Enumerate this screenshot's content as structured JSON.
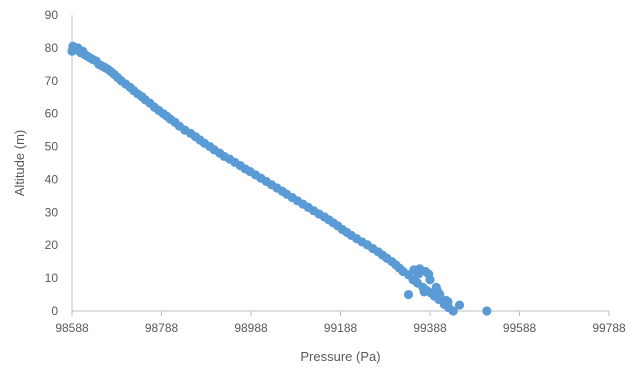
{
  "chart_data": {
    "type": "scatter",
    "title": "",
    "xlabel": "Pressure (Pa)",
    "ylabel": "Altitude (m)",
    "xlim": [
      98588,
      99788
    ],
    "ylim": [
      0,
      90
    ],
    "x_ticks": [
      "98588",
      "98788",
      "98988",
      "99188",
      "99388",
      "99588",
      "99788"
    ],
    "y_ticks": [
      "0",
      "10",
      "20",
      "30",
      "40",
      "50",
      "60",
      "70",
      "80",
      "90"
    ],
    "grid": false,
    "legend": "none",
    "marker_color": "#5b9bd5",
    "series": [
      {
        "points": [
          [
            98588,
            79
          ],
          [
            98590,
            80.5
          ],
          [
            98593,
            80
          ],
          [
            98597,
            79.5
          ],
          [
            98601,
            80
          ],
          [
            98604,
            79
          ],
          [
            98608,
            78.5
          ],
          [
            98612,
            79
          ],
          [
            98616,
            78
          ],
          [
            98622,
            77.5
          ],
          [
            98628,
            77
          ],
          [
            98634,
            76.5
          ],
          [
            98642,
            76
          ],
          [
            98648,
            75
          ],
          [
            98655,
            74.5
          ],
          [
            98662,
            74
          ],
          [
            98668,
            73.5
          ],
          [
            98675,
            72.8
          ],
          [
            98682,
            72
          ],
          [
            98690,
            71
          ],
          [
            98698,
            70
          ],
          [
            98708,
            69
          ],
          [
            98718,
            68
          ],
          [
            98726,
            67
          ],
          [
            98735,
            66
          ],
          [
            98744,
            65.2
          ],
          [
            98752,
            64.2
          ],
          [
            98762,
            63.2
          ],
          [
            98772,
            62
          ],
          [
            98782,
            61
          ],
          [
            98792,
            60
          ],
          [
            98800,
            59.2
          ],
          [
            98808,
            58.3
          ],
          [
            98818,
            57.4
          ],
          [
            98828,
            56.2
          ],
          [
            98840,
            55
          ],
          [
            98853,
            54
          ],
          [
            98864,
            53
          ],
          [
            98874,
            52
          ],
          [
            98884,
            51
          ],
          [
            98896,
            50
          ],
          [
            98906,
            49
          ],
          [
            98918,
            48
          ],
          [
            98928,
            47
          ],
          [
            98940,
            46.2
          ],
          [
            98952,
            45.2
          ],
          [
            98964,
            44.2
          ],
          [
            98975,
            43.2
          ],
          [
            98986,
            42.4
          ],
          [
            98998,
            41.4
          ],
          [
            99010,
            40.4
          ],
          [
            99022,
            39.4
          ],
          [
            99034,
            38.4
          ],
          [
            99046,
            37.4
          ],
          [
            99058,
            36.4
          ],
          [
            99068,
            35.5
          ],
          [
            99080,
            34.5
          ],
          [
            99092,
            33.5
          ],
          [
            99104,
            32.5
          ],
          [
            99116,
            31.5
          ],
          [
            99128,
            30.5
          ],
          [
            99140,
            29.5
          ],
          [
            99152,
            28.6
          ],
          [
            99162,
            27.7
          ],
          [
            99172,
            26.8
          ],
          [
            99182,
            25.9
          ],
          [
            99192,
            24.8
          ],
          [
            99202,
            23.9
          ],
          [
            99212,
            23
          ],
          [
            99224,
            22
          ],
          [
            99236,
            21
          ],
          [
            99248,
            20.1
          ],
          [
            99260,
            19
          ],
          [
            99272,
            18
          ],
          [
            99282,
            17
          ],
          [
            99292,
            16
          ],
          [
            99303,
            15
          ],
          [
            99312,
            14
          ],
          [
            99320,
            13
          ],
          [
            99328,
            12
          ],
          [
            99340,
            11
          ],
          [
            99350,
            9.5
          ],
          [
            99360,
            8.5
          ],
          [
            99372,
            7.2
          ],
          [
            99380,
            6.3
          ],
          [
            99390,
            5.5
          ],
          [
            99398,
            4.5
          ],
          [
            99408,
            3.5
          ],
          [
            99420,
            2
          ],
          [
            99430,
            1
          ],
          [
            99440,
            0
          ],
          [
            99352,
            12.5
          ],
          [
            99362,
            11.2
          ],
          [
            99365,
            12.8
          ],
          [
            99378,
            12
          ],
          [
            99385,
            11.2
          ],
          [
            99388,
            9.5
          ],
          [
            99402,
            7.2
          ],
          [
            99405,
            6
          ],
          [
            99410,
            5
          ],
          [
            99424,
            3.2
          ],
          [
            99428,
            2.8
          ],
          [
            99340,
            5
          ],
          [
            99375,
            5.8
          ],
          [
            99454,
            1.8
          ],
          [
            99515,
            0
          ]
        ]
      }
    ]
  }
}
